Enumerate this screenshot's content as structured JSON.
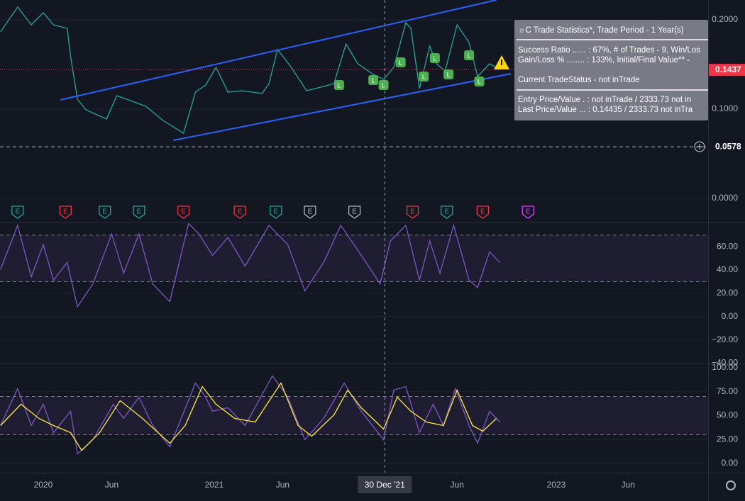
{
  "chart_data": [
    {
      "type": "line",
      "xlim": [
        2019.747,
        2023.888
      ],
      "ylim": [
        -0.0254,
        0.2222
      ],
      "yticks": [
        {
          "value": 0.2,
          "label": "0.2000"
        },
        {
          "value": 0.1,
          "label": "0.1000"
        },
        {
          "value": 0,
          "label": "0.0000"
        }
      ],
      "series": [
        {
          "color": "#26a69a",
          "x": [
            2019.75,
            2019.85,
            2019.93,
            2020.0,
            2020.06,
            2020.14,
            2020.16,
            2020.2,
            2020.25,
            2020.37,
            2020.43,
            2020.49,
            2020.6,
            2020.7,
            2020.82,
            2020.89,
            2020.95,
            2021.01,
            2021.08,
            2021.16,
            2021.28,
            2021.32,
            2021.37,
            2021.45,
            2021.54,
            2021.64,
            2021.7,
            2021.77,
            2021.84,
            2021.93,
            2021.99,
            2022.05,
            2022.12,
            2022.15,
            2022.2,
            2022.26,
            2022.3,
            2022.35,
            2022.42,
            2022.49,
            2022.54,
            2022.61,
            2022.67
          ],
          "values": [
            0.1865,
            0.2143,
            0.1944,
            0.2079,
            0.1944,
            0.1905,
            0.1587,
            0.111,
            0.0992,
            0.0889,
            0.115,
            0.111,
            0.1031,
            0.0873,
            0.073,
            0.119,
            0.127,
            0.1468,
            0.119,
            0.1206,
            0.1175,
            0.1286,
            0.1667,
            0.1468,
            0.1206,
            0.1254,
            0.1286,
            0.173,
            0.1508,
            0.1389,
            0.1333,
            0.1468,
            0.1968,
            0.1905,
            0.123,
            0.1706,
            0.1508,
            0.1428,
            0.1944,
            0.1746,
            0.1365,
            0.1508,
            0.1444
          ]
        },
        {
          "color": "#2962ff",
          "x": [
            2020.1,
            2022.65
          ],
          "values": [
            0.1103,
            0.2222
          ]
        },
        {
          "color": "#2962ff",
          "x": [
            2020.76,
            2022.735
          ],
          "values": [
            0.065,
            0.1397
          ]
        }
      ],
      "price_lines": [
        {
          "value": 0.1443,
          "color": "#f23645",
          "style": "dotted"
        },
        {
          "value": 0.1437,
          "color": "#f23645"
        },
        {
          "value": 0.0578,
          "color": "#131722",
          "style": "dashed"
        }
      ],
      "signals": {
        "label": "L",
        "color": "#4caf50",
        "x": [
          2021.73,
          2021.93,
          2021.99,
          2022.09,
          2022.225,
          2022.29,
          2022.37,
          2022.49,
          2022.55
        ],
        "values": [
          0.127,
          0.1325,
          0.127,
          0.1524,
          0.1365,
          0.1571,
          0.1389,
          0.1603,
          0.1309
        ]
      },
      "events": {
        "label": "E",
        "x": [
          2019.85,
          2020.13,
          2020.36,
          2020.56,
          2020.82,
          2021.15,
          2021.36,
          2021.56,
          2021.82,
          2022.16,
          2022.36,
          2022.57,
          2022.835
        ],
        "colors": [
          "#26a69a",
          "#f23645",
          "#26a69a",
          "#26a69a",
          "#f23645",
          "#f23645",
          "#26a69a",
          "#b2b5be",
          "#b2b5be",
          "#f23645",
          "#26a69a",
          "#f23645",
          "#e040fb"
        ]
      },
      "stats_box": [
        "☼C Trade Statistics*, Trade Period - 1 Year(s)",
        "Success Ratio ...... : 67%, # of Trades - 9, Win/Los",
        "Gain/Loss % ........ : 133%, Initial/Final Value** - ",
        "Current TradeStatus - not inTrade",
        "Entry Price/Value . : not inTrade / 2333.73 not in",
        "Last Price/Value ... : 0.14435 / 2333.73 not inTra"
      ]
    },
    {
      "type": "line",
      "xlim": [
        2019.747,
        2023.888
      ],
      "ylim": [
        -39.7,
        80.2
      ],
      "yticks": [
        {
          "value": 60,
          "label": "60.00"
        },
        {
          "value": 40,
          "label": "40.00"
        },
        {
          "value": 20,
          "label": "20.00"
        },
        {
          "value": 0,
          "label": "0.00"
        },
        {
          "value": -20,
          "label": "−20.00"
        },
        {
          "value": -40,
          "label": "−40.00"
        }
      ],
      "bands": [
        30,
        70
      ],
      "series": [
        {
          "color": "#7e57c2",
          "x": [
            2019.75,
            2019.85,
            2019.93,
            2020.0,
            2020.06,
            2020.14,
            2020.2,
            2020.29,
            2020.4,
            2020.47,
            2020.56,
            2020.64,
            2020.74,
            2020.85,
            2020.91,
            2020.99,
            2021.08,
            2021.18,
            2021.32,
            2021.43,
            2021.53,
            2021.64,
            2021.74,
            2021.86,
            2021.97,
            2022.03,
            2022.12,
            2022.2,
            2022.26,
            2022.32,
            2022.4,
            2022.49,
            2022.54,
            2022.61,
            2022.67
          ],
          "values": [
            40.4,
            78.4,
            34.2,
            61.8,
            31.2,
            46.5,
            8.5,
            28.1,
            71.0,
            37.3,
            71.0,
            28.1,
            12.8,
            80.0,
            71.0,
            52.6,
            68.0,
            43.4,
            78.4,
            61.8,
            22.0,
            46.5,
            78.4,
            52.6,
            28.1,
            64.9,
            78.4,
            31.2,
            64.9,
            37.3,
            78.4,
            31.2,
            25.0,
            55.7,
            46.5
          ]
        }
      ]
    },
    {
      "type": "line",
      "xlim": [
        2019.747,
        2023.888
      ],
      "ylim": [
        -8.2,
        103
      ],
      "yticks": [
        {
          "value": 100,
          "label": "100.00"
        },
        {
          "value": 75,
          "label": "75.00"
        },
        {
          "value": 50,
          "label": "50.00"
        },
        {
          "value": 25,
          "label": "25.00"
        },
        {
          "value": 0,
          "label": "0.00"
        }
      ],
      "bands": [
        30,
        70
      ],
      "xticks": [
        {
          "value": 2020.0,
          "label": "2020"
        },
        {
          "value": 2020.4,
          "label": "Jun"
        },
        {
          "value": 2021.0,
          "label": "2021"
        },
        {
          "value": 2021.4,
          "label": "Jun"
        },
        {
          "value": 2022.42,
          "label": "Jun"
        },
        {
          "value": 2023.0,
          "label": "2023"
        },
        {
          "value": 2023.42,
          "label": "Jun"
        }
      ],
      "crosshair": {
        "value": 2021.997,
        "label": "30 Dec '21"
      },
      "series": [
        {
          "color": "#7e57c2",
          "x": [
            2019.75,
            2019.85,
            2019.93,
            2020.0,
            2020.06,
            2020.16,
            2020.2,
            2020.29,
            2020.41,
            2020.47,
            2020.56,
            2020.64,
            2020.74,
            2020.89,
            2020.95,
            2020.99,
            2021.08,
            2021.18,
            2021.34,
            2021.43,
            2021.53,
            2021.64,
            2021.76,
            2021.86,
            2021.99,
            2022.05,
            2022.12,
            2022.2,
            2022.28,
            2022.34,
            2022.41,
            2022.49,
            2022.54,
            2022.61,
            2022.67
          ],
          "values": [
            39.6,
            78.2,
            39.6,
            61.9,
            32.2,
            54.5,
            9.9,
            24.8,
            61.9,
            47.0,
            69.3,
            39.6,
            17.4,
            84.1,
            69.3,
            54.5,
            58.2,
            39.6,
            91.5,
            69.3,
            24.8,
            47.0,
            84.1,
            54.5,
            24.8,
            76.7,
            80.4,
            32.2,
            61.9,
            39.6,
            78.2,
            39.6,
            21.1,
            54.5,
            43.3
          ]
        },
        {
          "color": "#ffeb3b",
          "x": [
            2019.75,
            2019.87,
            2019.975,
            2020.06,
            2020.16,
            2020.225,
            2020.33,
            2020.45,
            2020.58,
            2020.74,
            2020.83,
            2020.93,
            2021.01,
            2021.12,
            2021.24,
            2021.39,
            2021.49,
            2021.57,
            2021.7,
            2021.78,
            2021.86,
            2021.99,
            2022.07,
            2022.15,
            2022.24,
            2022.34,
            2022.42,
            2022.51,
            2022.57,
            2022.65
          ],
          "values": [
            39.6,
            61.9,
            47.0,
            39.6,
            32.2,
            13.6,
            32.2,
            65.6,
            47.0,
            21.1,
            39.6,
            80.4,
            61.9,
            47.0,
            43.3,
            84.1,
            39.6,
            28.5,
            50.7,
            76.7,
            58.2,
            35.9,
            69.3,
            54.5,
            43.3,
            39.6,
            76.7,
            39.6,
            33.7,
            47.0
          ]
        }
      ]
    }
  ]
}
